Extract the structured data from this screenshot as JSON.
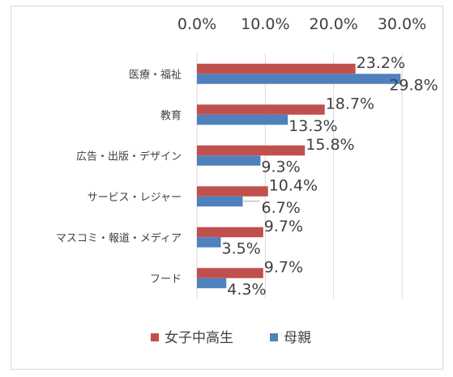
{
  "chart_data": {
    "type": "bar",
    "orientation": "horizontal",
    "categories": [
      "医療・福祉",
      "教育",
      "広告・出版・デザイン",
      "サービス・レジャー",
      "マスコミ・報道・メディア",
      "フード"
    ],
    "series": [
      {
        "name": "女子中高生",
        "color": "#c0504d",
        "values": [
          23.2,
          18.7,
          15.8,
          10.4,
          9.7,
          9.7
        ],
        "labels": [
          "23.2%",
          "18.7%",
          "15.8%",
          "10.4%",
          "9.7%",
          "9.7%"
        ]
      },
      {
        "name": "母親",
        "color": "#4f81bd",
        "values": [
          29.8,
          13.3,
          9.3,
          6.7,
          3.5,
          4.3
        ],
        "labels": [
          "29.8%",
          "13.3%",
          "9.3%",
          "6.7%",
          "3.5%",
          "4.3%"
        ]
      }
    ],
    "xticks": [
      "0.0%",
      "10.0%",
      "20.0%",
      "30.0%"
    ],
    "xlim": [
      0,
      30
    ],
    "axis_position": "top",
    "grid": true,
    "legend": "bottom"
  }
}
